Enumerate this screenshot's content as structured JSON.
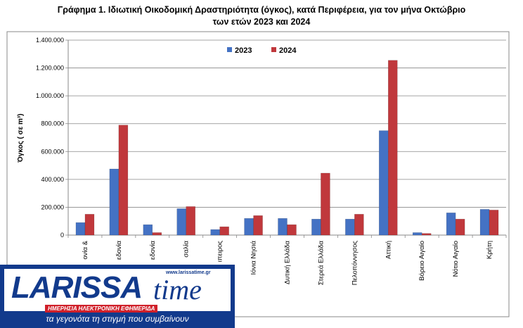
{
  "chart_data": {
    "type": "bar",
    "title": "Γράφημα 1.  Ιδιωτική Οικοδομική Δραστηριότητα (όγκος), κατά Περιφέρεια, για τον μήνα Οκτώβριο",
    "subtitle": "των ετών 2023 και 2024",
    "ylabel": "Όγκος ( σε m³)",
    "xlabel": "",
    "ylim": [
      0,
      1400000
    ],
    "yticks": [
      "0",
      "200.000",
      "400.000",
      "600.000",
      "800.000",
      "1.000.000",
      "1.200.000",
      "1.400.000"
    ],
    "categories": [
      "Αν. Μακεδονία & Θράκη",
      "Κεντρική Μακεδονία",
      "Δυτική Μακεδονία",
      "Θεσσαλία",
      "Ήπειρος",
      "Ιόνια Νησιά",
      "Δυτική Ελλάδα",
      "Στερεά Ελλάδα",
      "Πελοπόννησος",
      "Αττική",
      "Βόρειο Αιγαίο",
      "Νότιο Αιγαίο",
      "Κρήτη"
    ],
    "category_labels_visible": [
      "ονία &",
      "εδονία",
      "εδονία",
      "σαλία",
      "ιπειρος",
      "Ιόνια Νησιά",
      "Δυτική Ελλάδα",
      "Στερεά Ελλάδα",
      "Πελοπόννησος",
      "Αττική",
      "Βόρειο Αιγαίο",
      "Νότιο Αιγαίο",
      "Κρήτη"
    ],
    "series": [
      {
        "name": "2023",
        "color": "#4472c4",
        "values": [
          90000,
          475000,
          75000,
          190000,
          40000,
          120000,
          120000,
          115000,
          115000,
          750000,
          18000,
          160000,
          185000
        ]
      },
      {
        "name": "2024",
        "color": "#c0383c",
        "values": [
          150000,
          790000,
          18000,
          205000,
          60000,
          140000,
          75000,
          445000,
          150000,
          1255000,
          12000,
          115000,
          180000
        ]
      }
    ],
    "grid": true,
    "legend": "top-center"
  },
  "logo": {
    "brand": "LARISSA",
    "time": "time",
    "url": "www.larissatime.gr",
    "tagline": "ΗΜΕΡΗΣΙΑ ΗΛΕΚΤΡΟΝΙΚΗ ΕΦΗΜΕΡΙΔΑ",
    "slogan": "τα γεγονότα τη στιγμή που συμβαίνουν",
    "bg_color": "#123a8c",
    "accent_color": "#d0202a"
  }
}
